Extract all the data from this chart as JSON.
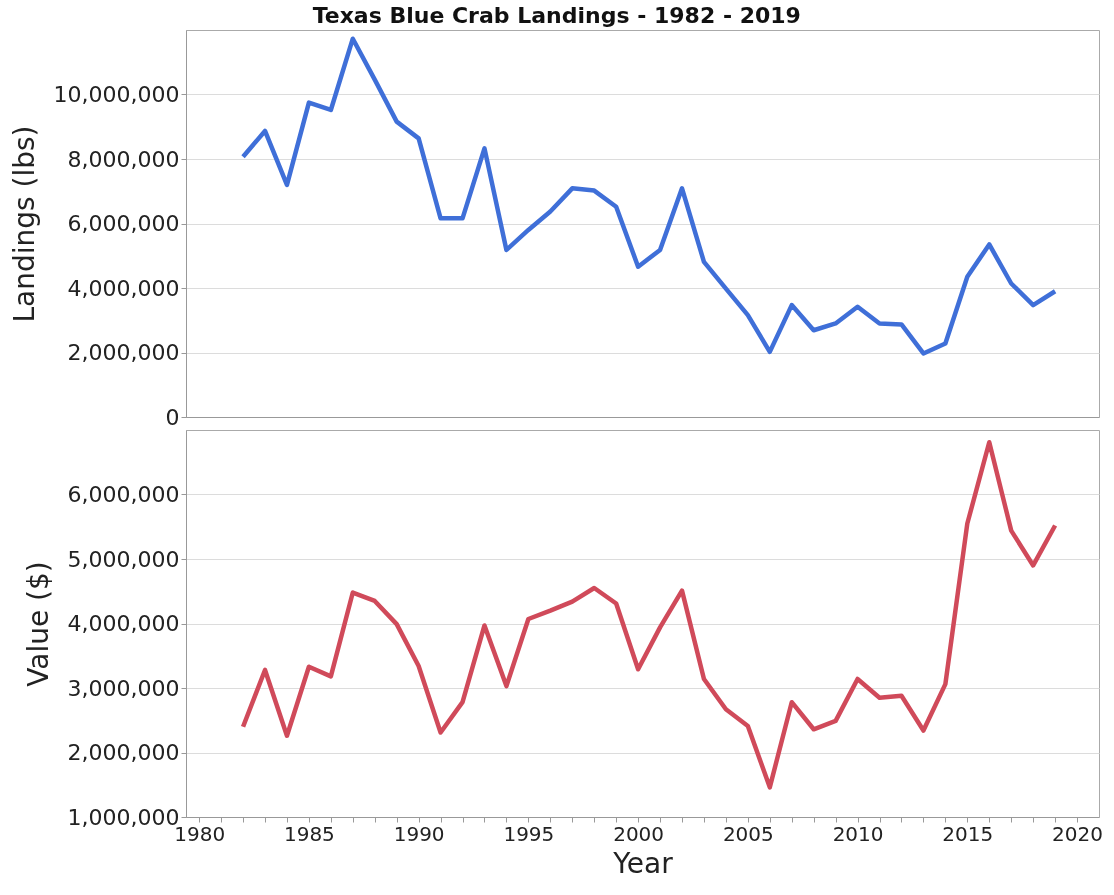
{
  "chart_data": [
    {
      "type": "line",
      "title": "Texas Blue Crab Landings - 1982 - 2019",
      "ylabel": "Landings (lbs)",
      "x": [
        1982,
        1983,
        1984,
        1985,
        1986,
        1987,
        1988,
        1989,
        1990,
        1991,
        1992,
        1993,
        1994,
        1995,
        1996,
        1997,
        1998,
        1999,
        2000,
        2001,
        2002,
        2003,
        2004,
        2005,
        2006,
        2007,
        2008,
        2009,
        2010,
        2011,
        2012,
        2013,
        2014,
        2015,
        2016,
        2017,
        2018,
        2019
      ],
      "series": [
        {
          "color": "#3f6fd8",
          "values": [
            8070000,
            8870000,
            7200000,
            9750000,
            9520000,
            11730000,
            10460000,
            9160000,
            8640000,
            6160000,
            6160000,
            8330000,
            5180000,
            5800000,
            6370000,
            7090000,
            7020000,
            6520000,
            4660000,
            5180000,
            7090000,
            4810000,
            3980000,
            3160000,
            2020000,
            3470000,
            2690000,
            2900000,
            3420000,
            2900000,
            2870000,
            1970000,
            2280000,
            4350000,
            5350000,
            4140000,
            3470000,
            3900000
          ]
        }
      ],
      "xlim": [
        1979.4,
        2021
      ],
      "ylim": [
        0,
        12000000
      ],
      "yticks": [
        0,
        {
          "value": 2000000,
          "label": "2,000,000"
        },
        {
          "value": 4000000,
          "label": "4,000,000"
        },
        {
          "value": 6000000,
          "label": "6,000,000"
        },
        {
          "value": 8000000,
          "label": "8,000,000"
        },
        {
          "value": 10000000,
          "label": "10,000,000"
        }
      ],
      "grid": "y",
      "tick_labels": "y",
      "line_style": "solid"
    },
    {
      "type": "line",
      "xlabel": "Year",
      "ylabel": "Value ($)",
      "x": [
        1982,
        1983,
        1984,
        1985,
        1986,
        1987,
        1988,
        1989,
        1990,
        1991,
        1992,
        1993,
        1994,
        1995,
        1996,
        1997,
        1998,
        1999,
        2000,
        2001,
        2002,
        2003,
        2004,
        2005,
        2006,
        2007,
        2008,
        2009,
        2010,
        2011,
        2012,
        2013,
        2014,
        2015,
        2016,
        2017,
        2018,
        2019
      ],
      "series": [
        {
          "color": "#d04a5a",
          "values": [
            2400000,
            3280000,
            2260000,
            3330000,
            3180000,
            4480000,
            4350000,
            3990000,
            3340000,
            2310000,
            2780000,
            3970000,
            3030000,
            4070000,
            4200000,
            4340000,
            4550000,
            4310000,
            3290000,
            3940000,
            4510000,
            3140000,
            2670000,
            2410000,
            1460000,
            2780000,
            2360000,
            2490000,
            3140000,
            2850000,
            2880000,
            2340000,
            3060000,
            5550000,
            6810000,
            5440000,
            4900000,
            5520000
          ]
        }
      ],
      "xlim": [
        1979.4,
        2021
      ],
      "xticks": [
        1980,
        {
          "value": 1981,
          "label": null
        },
        {
          "value": 1982,
          "label": null
        },
        {
          "value": 1983,
          "label": null
        },
        {
          "value": 1984,
          "label": null
        },
        1985,
        {
          "value": 1986,
          "label": null
        },
        {
          "value": 1987,
          "label": null
        },
        {
          "value": 1988,
          "label": null
        },
        {
          "value": 1989,
          "label": null
        },
        1990,
        {
          "value": 1991,
          "label": null
        },
        {
          "value": 1992,
          "label": null
        },
        {
          "value": 1993,
          "label": null
        },
        {
          "value": 1994,
          "label": null
        },
        1995,
        {
          "value": 1996,
          "label": null
        },
        {
          "value": 1997,
          "label": null
        },
        {
          "value": 1998,
          "label": null
        },
        {
          "value": 1999,
          "label": null
        },
        2000,
        {
          "value": 2001,
          "label": null
        },
        {
          "value": 2002,
          "label": null
        },
        {
          "value": 2003,
          "label": null
        },
        {
          "value": 2004,
          "label": null
        },
        2005,
        {
          "value": 2006,
          "label": null
        },
        {
          "value": 2007,
          "label": null
        },
        {
          "value": 2008,
          "label": null
        },
        {
          "value": 2009,
          "label": null
        },
        2010,
        {
          "value": 2011,
          "label": null
        },
        {
          "value": 2012,
          "label": null
        },
        {
          "value": 2013,
          "label": null
        },
        {
          "value": 2014,
          "label": null
        },
        2015,
        {
          "value": 2016,
          "label": null
        },
        {
          "value": 2017,
          "label": null
        },
        {
          "value": 2018,
          "label": null
        },
        {
          "value": 2019,
          "label": null
        },
        2020
      ],
      "ylim": [
        1000000,
        7000000
      ],
      "yticks": [
        {
          "value": 1000000,
          "label": "1,000,000"
        },
        {
          "value": 2000000,
          "label": "2,000,000"
        },
        {
          "value": 3000000,
          "label": "3,000,000"
        },
        {
          "value": 4000000,
          "label": "4,000,000"
        },
        {
          "value": 5000000,
          "label": "5,000,000"
        },
        {
          "value": 6000000,
          "label": "6,000,000"
        }
      ],
      "grid": "y",
      "line_style": "solid"
    }
  ]
}
